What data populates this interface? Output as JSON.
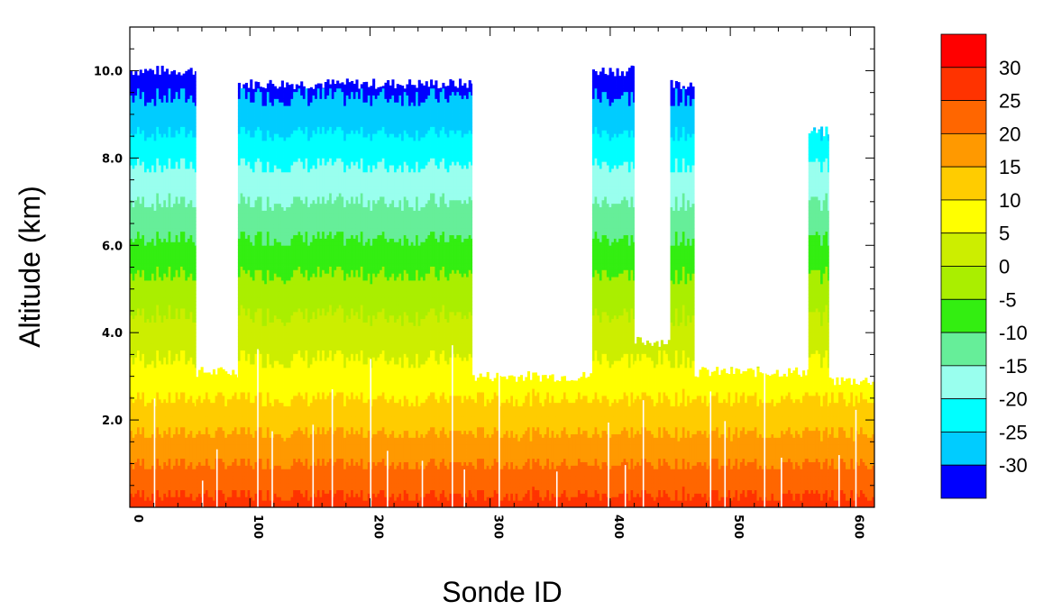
{
  "chart_data": {
    "type": "heatmap",
    "title": "",
    "xlabel": "Sonde ID",
    "ylabel": "Altitude (km)",
    "xlim": [
      0,
      620
    ],
    "ylim": [
      0,
      11
    ],
    "x_ticks": [
      0,
      100,
      200,
      300,
      400,
      500,
      600
    ],
    "x_tick_labels": [
      "0",
      "100",
      "200",
      "300",
      "400",
      "500",
      "600"
    ],
    "y_ticks": [
      2,
      4,
      6,
      8,
      10
    ],
    "y_tick_labels": [
      "2.0",
      "4.0",
      "6.0",
      "8.0",
      "10.0"
    ],
    "colorbar": {
      "labels": [
        "30",
        "25",
        "20",
        "15",
        "10",
        "5",
        "0",
        "-5",
        "-10",
        "-15",
        "-20",
        "-25",
        "-30"
      ],
      "colors": [
        "#ff0000",
        "#ff3300",
        "#ff6600",
        "#ff9900",
        "#ffcc00",
        "#ffff00",
        "#ccee00",
        "#aaee00",
        "#33ee11",
        "#66ee99",
        "#99ffee",
        "#00ffff",
        "#00ccff",
        "#0000ff"
      ]
    },
    "temperature_profile": {
      "description_units": "altitude_km -> temperature_C",
      "altitude_km": [
        0,
        1,
        2,
        3,
        4,
        5,
        6,
        7,
        8,
        9,
        10
      ],
      "temperature_C": [
        27,
        20,
        13,
        7,
        2,
        -3,
        -9,
        -15,
        -21,
        -28,
        -33
      ]
    },
    "segments": [
      {
        "x_start": 0,
        "x_end": 55,
        "top_km": 10.0
      },
      {
        "x_start": 55,
        "x_end": 90,
        "top_km": 3.1
      },
      {
        "x_start": 90,
        "x_end": 285,
        "top_km": 9.7
      },
      {
        "x_start": 285,
        "x_end": 385,
        "top_km": 3.0
      },
      {
        "x_start": 385,
        "x_end": 420,
        "top_km": 10.0
      },
      {
        "x_start": 420,
        "x_end": 450,
        "top_km": 3.8
      },
      {
        "x_start": 450,
        "x_end": 470,
        "top_km": 9.7
      },
      {
        "x_start": 470,
        "x_end": 565,
        "top_km": 3.1
      },
      {
        "x_start": 565,
        "x_end": 582,
        "top_km": 8.6
      },
      {
        "x_start": 582,
        "x_end": 620,
        "top_km": 2.9
      }
    ]
  }
}
